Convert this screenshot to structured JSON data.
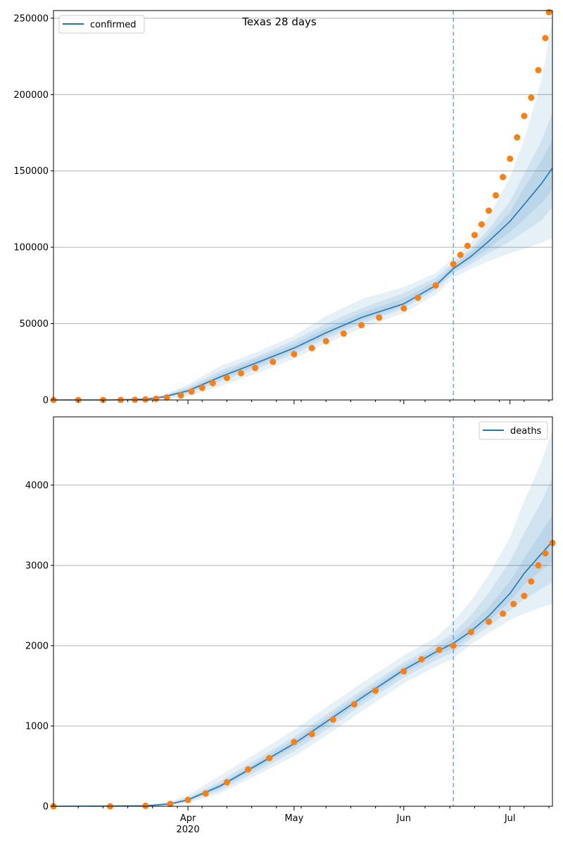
{
  "chart_data": [
    {
      "type": "line",
      "title": "Texas 28 days",
      "xlabel": "",
      "ylabel": "",
      "x_range": [
        "2020-02-23",
        "2020-07-13"
      ],
      "ylim": [
        0,
        255000
      ],
      "y_ticks": [
        0,
        50000,
        100000,
        150000,
        200000,
        250000
      ],
      "x_ticks": [
        {
          "date": "2020-04-01",
          "label": "Apr",
          "year": "2020"
        },
        {
          "date": "2020-05-01",
          "label": "May",
          "year": ""
        },
        {
          "date": "2020-06-01",
          "label": "Jun",
          "year": ""
        },
        {
          "date": "2020-07-01",
          "label": "Jul",
          "year": ""
        }
      ],
      "grid": "horizontal",
      "legend": {
        "position": "top-left",
        "entries": [
          "confirmed"
        ]
      },
      "forecast_start": "2020-06-15",
      "colors": {
        "line": "#1f77b4",
        "points": "#ff7f0e",
        "band": "#1f77b4"
      },
      "series": [
        {
          "name": "confirmed",
          "kind": "line",
          "x": [
            "2020-02-23",
            "2020-03-10",
            "2020-03-20",
            "2020-03-25",
            "2020-04-01",
            "2020-04-10",
            "2020-04-20",
            "2020-05-01",
            "2020-05-10",
            "2020-05-20",
            "2020-06-01",
            "2020-06-10",
            "2020-06-15",
            "2020-06-20",
            "2020-06-25",
            "2020-07-01",
            "2020-07-05",
            "2020-07-10",
            "2020-07-13"
          ],
          "y": [
            0,
            0,
            500,
            2000,
            6000,
            15000,
            24000,
            34000,
            44000,
            54000,
            63000,
            75000,
            86000,
            94000,
            104000,
            117000,
            128000,
            142000,
            152000
          ],
          "bands": [
            {
              "lower": [
                0,
                0,
                200,
                800,
                2500,
                9000,
                17000,
                27000,
                37000,
                47000,
                57000,
                69000,
                80000,
                86000,
                91000,
                96000,
                99000,
                103000,
                106000
              ],
              "upper": [
                0,
                0,
                1000,
                3500,
                10000,
                22000,
                31000,
                42000,
                55000,
                66000,
                74000,
                83000,
                93000,
                103000,
                120000,
                146000,
                170000,
                210000,
                250000
              ]
            },
            {
              "lower": [
                0,
                0,
                300,
                1300,
                4000,
                12000,
                20000,
                30000,
                40000,
                50000,
                60000,
                72000,
                83000,
                89000,
                96000,
                104000,
                110000,
                118000,
                126000
              ],
              "upper": [
                0,
                0,
                800,
                2800,
                8500,
                19000,
                28000,
                39000,
                50000,
                60000,
                70000,
                80000,
                90000,
                99000,
                112000,
                130000,
                148000,
                170000,
                188000
              ]
            },
            {
              "lower": [
                0,
                0,
                400,
                1700,
                5000,
                13500,
                22000,
                32000,
                42000,
                52000,
                61500,
                73500,
                84500,
                91500,
                99500,
                110000,
                118500,
                129000,
                138000
              ],
              "upper": [
                0,
                0,
                650,
                2400,
                7300,
                17000,
                26500,
                36500,
                47000,
                57000,
                66500,
                77500,
                88000,
                97000,
                108500,
                123000,
                139000,
                157000,
                170000
              ]
            }
          ]
        },
        {
          "name": "",
          "kind": "scatter",
          "x": [
            "2020-02-23",
            "2020-03-01",
            "2020-03-08",
            "2020-03-13",
            "2020-03-17",
            "2020-03-20",
            "2020-03-23",
            "2020-03-26",
            "2020-03-30",
            "2020-04-02",
            "2020-04-05",
            "2020-04-08",
            "2020-04-12",
            "2020-04-16",
            "2020-04-20",
            "2020-04-25",
            "2020-05-01",
            "2020-05-06",
            "2020-05-10",
            "2020-05-15",
            "2020-05-20",
            "2020-05-25",
            "2020-06-01",
            "2020-06-05",
            "2020-06-10",
            "2020-06-15",
            "2020-06-17",
            "2020-06-19",
            "2020-06-21",
            "2020-06-23",
            "2020-06-25",
            "2020-06-27",
            "2020-06-29",
            "2020-07-01",
            "2020-07-03",
            "2020-07-05",
            "2020-07-07",
            "2020-07-09",
            "2020-07-11",
            "2020-07-12"
          ],
          "y": [
            0,
            0,
            0,
            50,
            150,
            400,
            800,
            1600,
            3000,
            5500,
            8000,
            11000,
            14500,
            17500,
            21000,
            25000,
            30000,
            34000,
            38500,
            43500,
            49000,
            54000,
            60000,
            67000,
            75000,
            89000,
            95000,
            101000,
            108000,
            115000,
            124000,
            134000,
            146000,
            158000,
            172000,
            186000,
            198000,
            216000,
            237000,
            254000
          ]
        }
      ]
    },
    {
      "type": "line",
      "title": "",
      "xlabel": "",
      "ylabel": "",
      "x_range": [
        "2020-02-23",
        "2020-07-13"
      ],
      "ylim": [
        0,
        4850
      ],
      "y_ticks": [
        0,
        1000,
        2000,
        3000,
        4000
      ],
      "x_ticks": [
        {
          "date": "2020-04-01",
          "label": "Apr",
          "year": "2020"
        },
        {
          "date": "2020-05-01",
          "label": "May",
          "year": ""
        },
        {
          "date": "2020-06-01",
          "label": "Jun",
          "year": ""
        },
        {
          "date": "2020-07-01",
          "label": "Jul",
          "year": ""
        }
      ],
      "grid": "horizontal",
      "legend": {
        "position": "top-right",
        "entries": [
          "deaths"
        ]
      },
      "forecast_start": "2020-06-15",
      "colors": {
        "line": "#1f77b4",
        "points": "#ff7f0e",
        "band": "#1f77b4"
      },
      "series": [
        {
          "name": "deaths",
          "kind": "line",
          "x": [
            "2020-02-23",
            "2020-03-20",
            "2020-03-27",
            "2020-04-01",
            "2020-04-10",
            "2020-04-20",
            "2020-05-01",
            "2020-05-10",
            "2020-05-20",
            "2020-06-01",
            "2020-06-10",
            "2020-06-15",
            "2020-06-20",
            "2020-06-25",
            "2020-07-01",
            "2020-07-05",
            "2020-07-10",
            "2020-07-13"
          ],
          "y": [
            0,
            5,
            30,
            80,
            250,
            500,
            780,
            1050,
            1350,
            1700,
            1920,
            2030,
            2180,
            2370,
            2650,
            2900,
            3150,
            3300
          ],
          "bands": [
            {
              "lower": [
                0,
                0,
                10,
                40,
                160,
                380,
                620,
                880,
                1180,
                1530,
                1740,
                1840,
                2020,
                2160,
                2320,
                2400,
                2480,
                2520
              ],
              "upper": [
                0,
                20,
                60,
                140,
                380,
                650,
                950,
                1230,
                1530,
                1880,
                2100,
                2300,
                2560,
                2880,
                3350,
                3800,
                4300,
                4700
              ]
            },
            {
              "lower": [
                0,
                2,
                18,
                55,
                195,
                425,
                685,
                950,
                1255,
                1605,
                1820,
                1920,
                2090,
                2240,
                2440,
                2580,
                2710,
                2790
              ],
              "upper": [
                0,
                12,
                45,
                110,
                310,
                575,
                865,
                1140,
                1440,
                1790,
                2010,
                2160,
                2380,
                2660,
                3050,
                3400,
                3800,
                4100
              ]
            },
            {
              "lower": [
                0,
                3,
                24,
                68,
                225,
                465,
                735,
                1005,
                1305,
                1660,
                1875,
                1975,
                2135,
                2305,
                2555,
                2760,
                2940,
                3050
              ],
              "upper": [
                0,
                8,
                37,
                93,
                275,
                535,
                825,
                1095,
                1395,
                1745,
                1965,
                2090,
                2270,
                2480,
                2800,
                3090,
                3420,
                3630
              ]
            }
          ]
        },
        {
          "name": "",
          "kind": "scatter",
          "x": [
            "2020-02-23",
            "2020-03-10",
            "2020-03-20",
            "2020-03-27",
            "2020-04-01",
            "2020-04-06",
            "2020-04-12",
            "2020-04-18",
            "2020-04-24",
            "2020-05-01",
            "2020-05-06",
            "2020-05-12",
            "2020-05-18",
            "2020-05-24",
            "2020-06-01",
            "2020-06-06",
            "2020-06-11",
            "2020-06-15",
            "2020-06-20",
            "2020-06-25",
            "2020-06-29",
            "2020-07-02",
            "2020-07-05",
            "2020-07-07",
            "2020-07-09",
            "2020-07-11",
            "2020-07-13"
          ],
          "y": [
            0,
            0,
            5,
            30,
            80,
            160,
            300,
            460,
            600,
            800,
            900,
            1080,
            1270,
            1440,
            1680,
            1830,
            1950,
            2000,
            2170,
            2300,
            2400,
            2520,
            2620,
            2800,
            3000,
            3150,
            3280
          ]
        }
      ]
    }
  ]
}
